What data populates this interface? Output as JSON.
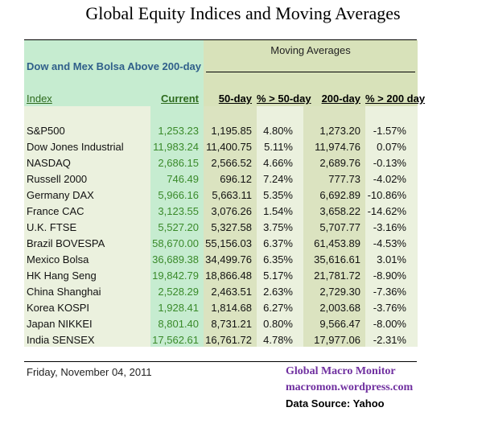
{
  "title": "Global Equity Indices and Moving Averages",
  "subtitle": "Dow and Mex Bolsa Above 200-day",
  "group_header": "Moving Averages",
  "colors": {
    "header_green": "#c6ecd0",
    "header_olive": "#d8e2ba",
    "body_light": "#ebf1de",
    "current_green": "#c6ecd0",
    "ma_olive": "#dbe3c0",
    "accent_purple": "#7030a0",
    "current_text": "#3a8a2a"
  },
  "chart_data": {
    "type": "table",
    "title": "Global Equity Indices and Moving Averages",
    "columns": [
      "Index",
      "Current",
      "50-day",
      "% > 50-day",
      "200-day",
      "% > 200 day"
    ],
    "rows": [
      [
        "S&P500",
        "1,253.23",
        "1,195.85",
        "4.80%",
        "1,273.20",
        "-1.57%"
      ],
      [
        "Dow Jones Industrial",
        "11,983.24",
        "11,400.75",
        "5.11%",
        "11,974.76",
        "0.07%"
      ],
      [
        "NASDAQ",
        "2,686.15",
        "2,566.52",
        "4.66%",
        "2,689.76",
        "-0.13%"
      ],
      [
        "Russell 2000",
        "746.49",
        "696.12",
        "7.24%",
        "777.73",
        "-4.02%"
      ],
      [
        "Germany DAX",
        "5,966.16",
        "5,663.11",
        "5.35%",
        "6,692.89",
        "-10.86%"
      ],
      [
        "France CAC",
        "3,123.55",
        "3,076.26",
        "1.54%",
        "3,658.22",
        "-14.62%"
      ],
      [
        "U.K. FTSE",
        "5,527.20",
        "5,327.58",
        "3.75%",
        "5,707.77",
        "-3.16%"
      ],
      [
        "Brazil BOVESPA",
        "58,670.00",
        "55,156.03",
        "6.37%",
        "61,453.89",
        "-4.53%"
      ],
      [
        "Mexico Bolsa",
        "36,689.38",
        "34,499.76",
        "6.35%",
        "35,616.61",
        "3.01%"
      ],
      [
        "HK  Hang Seng",
        "19,842.79",
        "18,866.48",
        "5.17%",
        "21,781.72",
        "-8.90%"
      ],
      [
        "China Shanghai",
        "2,528.29",
        "2,463.51",
        "2.63%",
        "2,729.30",
        "-7.36%"
      ],
      [
        "Korea KOSPI",
        "1,928.41",
        "1,814.68",
        "6.27%",
        "2,003.68",
        "-3.76%"
      ],
      [
        "Japan NIKKEI",
        "8,801.40",
        "8,731.21",
        "0.80%",
        "9,566.47",
        "-8.00%"
      ],
      [
        "India SENSEX",
        "17,562.61",
        "16,761.72",
        "4.78%",
        "17,977.06",
        "-2.31%"
      ]
    ]
  },
  "footer": {
    "date": "Friday, November 04, 2011",
    "brand": "Global Macro Monitor",
    "site": "macromon.wordpress.com",
    "source": "Data Source: Yahoo"
  }
}
